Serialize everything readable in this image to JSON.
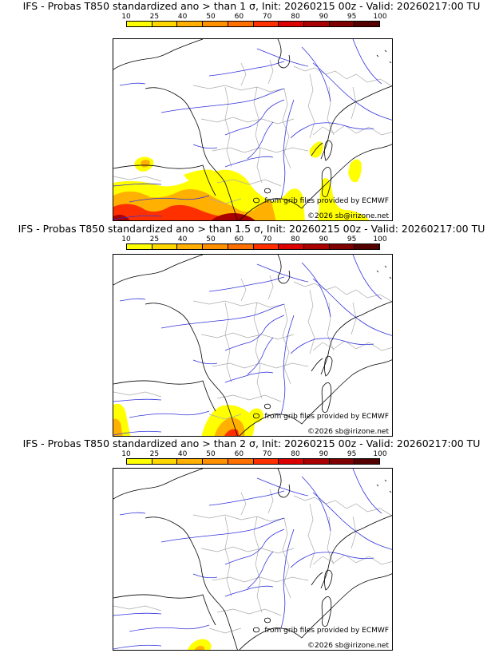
{
  "colorbar": {
    "labels": [
      "10",
      "25",
      "40",
      "50",
      "60",
      "70",
      "80",
      "90",
      "95",
      "100"
    ],
    "colors": [
      "#ffff00",
      "#ffd700",
      "#ffb000",
      "#ff9000",
      "#ff7000",
      "#ff3000",
      "#dd0000",
      "#aa0000",
      "#800000",
      "#550000"
    ]
  },
  "panels": [
    {
      "title": "IFS - Probas T850  standardized ano > than 1 σ, Init: 20260215 00z - Valid: 20260217:00 TU",
      "credit_source": "from grib files provided by ECMWF",
      "credit_copyright": "©2026 sb@irizone.net"
    },
    {
      "title": "IFS - Probas T850  standardized ano > than 1.5 σ, Init: 20260215 00z - Valid: 20260217:00 TU",
      "credit_source": "from grib files provided by ECMWF",
      "credit_copyright": "©2026 sb@irizone.net"
    },
    {
      "title": "IFS - Probas T850  standardized ano > than 2 σ, Init: 20260215 00z - Valid: 20260217:00 TU",
      "credit_source": "from grib files provided by ECMWF",
      "credit_copyright": "©2026 sb@irizone.net"
    }
  ],
  "map_colors": {
    "coast": "#000000",
    "rivers": "#3333dd",
    "borders": "#aaaaaa"
  }
}
